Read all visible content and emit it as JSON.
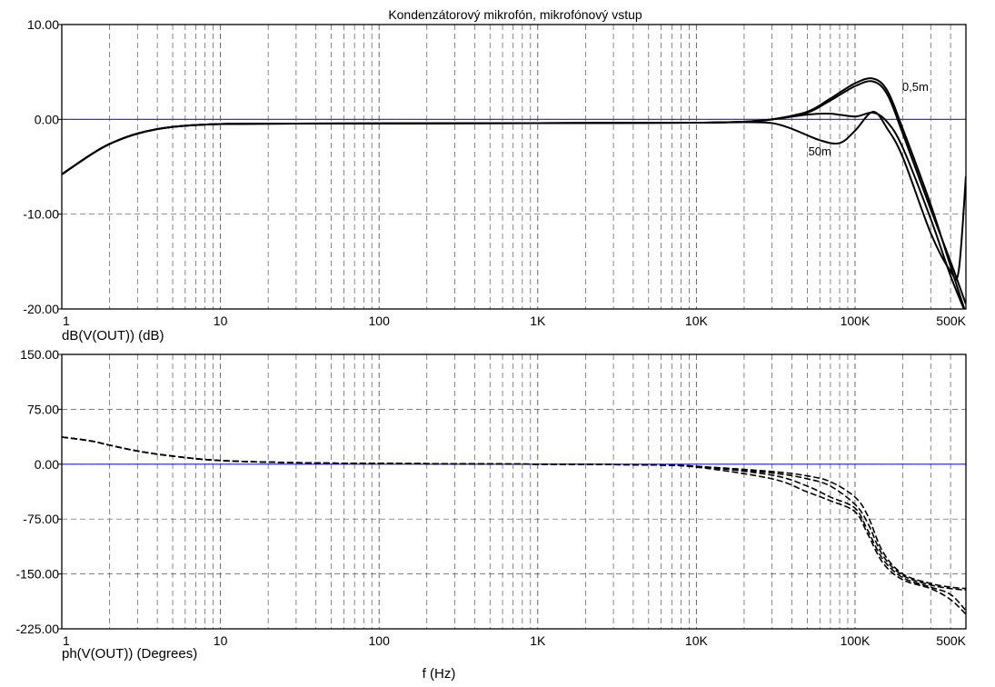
{
  "figure": {
    "title": "Kondenzátorový mikrofón, mikrofónový vstup",
    "x_axis_label": "f (Hz)",
    "colors": {
      "axes": "#000000",
      "grid": "#555555",
      "zero_line": "#2222cc",
      "curves": "#000000"
    }
  },
  "chart_data": [
    {
      "type": "line",
      "title": "Kondenzátorový mikrofón, mikrofónový vstup",
      "ylabel": "dB(V(OUT)) (dB)",
      "xlabel": "",
      "x_scale": "log",
      "xlim": [
        1,
        500000
      ],
      "ylim": [
        -20,
        10
      ],
      "x_tick_labels": [
        "1",
        "10",
        "100",
        "1K",
        "10K",
        "100K",
        "500K"
      ],
      "x_tick_values": [
        1,
        10,
        100,
        1000,
        10000,
        100000,
        500000
      ],
      "y_tick_labels": [
        "10.00",
        "0.00",
        "-10.00",
        "-20.00"
      ],
      "y_tick_values": [
        10,
        0,
        -10,
        -20
      ],
      "grid": true,
      "reference_line": 0,
      "annotations": [
        {
          "text": "0,5m",
          "x": 240000,
          "y": 3.0
        },
        {
          "text": "50m",
          "x": 60000,
          "y": -3.8
        }
      ],
      "series": [
        {
          "x": [
            1,
            1.5,
            2,
            3,
            5,
            10,
            30,
            1000,
            10000,
            20000,
            30000,
            50000,
            70000,
            100000,
            130000,
            160000,
            200000,
            300000,
            400000,
            500000
          ],
          "values": [
            -5.8,
            -3.8,
            -2.6,
            -1.5,
            -0.8,
            -0.5,
            -0.45,
            -0.4,
            -0.35,
            -0.25,
            0.0,
            0.8,
            2.2,
            3.8,
            4.3,
            3.0,
            -1.0,
            -9.0,
            -15.5,
            -20.5
          ]
        },
        {
          "x": [
            1,
            1.5,
            2,
            3,
            5,
            10,
            30,
            1000,
            10000,
            20000,
            30000,
            50000,
            70000,
            100000,
            130000,
            160000,
            200000,
            300000,
            400000,
            500000
          ],
          "values": [
            -5.8,
            -3.8,
            -2.6,
            -1.5,
            -0.8,
            -0.5,
            -0.45,
            -0.4,
            -0.35,
            -0.25,
            0.0,
            0.7,
            2.0,
            3.5,
            4.0,
            2.6,
            -1.5,
            -9.5,
            -15.0,
            -19.5
          ]
        },
        {
          "x": [
            1,
            1.5,
            2,
            3,
            5,
            10,
            30,
            1000,
            10000,
            20000,
            30000,
            50000,
            70000,
            100000,
            130000,
            160000,
            200000,
            300000,
            400000,
            500000
          ],
          "values": [
            -5.8,
            -3.8,
            -2.6,
            -1.5,
            -0.8,
            -0.5,
            -0.45,
            -0.4,
            -0.35,
            -0.25,
            0.0,
            0.5,
            0.6,
            0.3,
            0.7,
            -0.3,
            -3.0,
            -10.5,
            -16.5,
            -20.5
          ]
        },
        {
          "x": [
            1,
            1.5,
            2,
            3,
            5,
            10,
            30,
            1000,
            10000,
            20000,
            30000,
            40000,
            60000,
            80000,
            100000,
            130000,
            160000,
            200000,
            300000,
            400000,
            450000,
            500000
          ],
          "values": [
            -5.8,
            -3.8,
            -2.6,
            -1.5,
            -0.8,
            -0.5,
            -0.45,
            -0.4,
            -0.35,
            -0.3,
            -0.4,
            -1.0,
            -2.2,
            -2.5,
            -1.2,
            0.8,
            -1.0,
            -4.0,
            -12.0,
            -16.0,
            -16.0,
            -6.0
          ]
        }
      ]
    },
    {
      "type": "line",
      "title": "",
      "ylabel": "ph(V(OUT)) (Degrees)",
      "xlabel": "f (Hz)",
      "x_scale": "log",
      "xlim": [
        1,
        500000
      ],
      "ylim": [
        -225,
        150
      ],
      "x_tick_labels": [
        "1",
        "10",
        "100",
        "1K",
        "10K",
        "100K",
        "500K"
      ],
      "x_tick_values": [
        1,
        10,
        100,
        1000,
        10000,
        100000,
        500000
      ],
      "y_tick_labels": [
        "150.00",
        "75.00",
        "0.00",
        "-75.00",
        "-150.00",
        "-225.00"
      ],
      "y_tick_values": [
        150,
        75,
        0,
        -75,
        -150,
        -225
      ],
      "grid": true,
      "reference_line": 0,
      "line_style": "dashed",
      "series": [
        {
          "x": [
            1,
            1.5,
            2,
            3,
            5,
            10,
            30,
            100,
            1000,
            5000,
            10000,
            30000,
            50000,
            70000,
            100000,
            120000,
            150000,
            200000,
            300000,
            400000,
            500000
          ],
          "values": [
            37,
            32,
            26,
            18,
            11,
            5,
            2,
            1,
            0,
            -1,
            -3,
            -10,
            -16,
            -24,
            -45,
            -70,
            -120,
            -150,
            -163,
            -168,
            -170
          ]
        },
        {
          "x": [
            1,
            1.5,
            2,
            3,
            5,
            10,
            30,
            100,
            1000,
            5000,
            10000,
            30000,
            50000,
            70000,
            100000,
            120000,
            150000,
            200000,
            300000,
            400000,
            500000
          ],
          "values": [
            37,
            32,
            26,
            18,
            11,
            5,
            2,
            1,
            0,
            -1,
            -3,
            -12,
            -20,
            -30,
            -55,
            -80,
            -125,
            -152,
            -165,
            -170,
            -172
          ]
        },
        {
          "x": [
            1,
            1.5,
            2,
            3,
            5,
            10,
            30,
            100,
            1000,
            5000,
            10000,
            30000,
            50000,
            70000,
            100000,
            120000,
            150000,
            200000,
            300000,
            400000,
            500000
          ],
          "values": [
            37,
            32,
            26,
            18,
            11,
            5,
            2,
            1,
            0,
            -1,
            -3,
            -15,
            -30,
            -45,
            -60,
            -90,
            -130,
            -155,
            -168,
            -178,
            -200
          ]
        },
        {
          "x": [
            1,
            1.5,
            2,
            3,
            5,
            10,
            30,
            100,
            1000,
            5000,
            10000,
            30000,
            50000,
            70000,
            100000,
            120000,
            150000,
            200000,
            300000,
            400000,
            500000
          ],
          "values": [
            37,
            32,
            26,
            18,
            11,
            5,
            2,
            1,
            0,
            -1,
            -4,
            -20,
            -38,
            -50,
            -65,
            -95,
            -135,
            -158,
            -170,
            -185,
            -205
          ]
        }
      ]
    }
  ]
}
